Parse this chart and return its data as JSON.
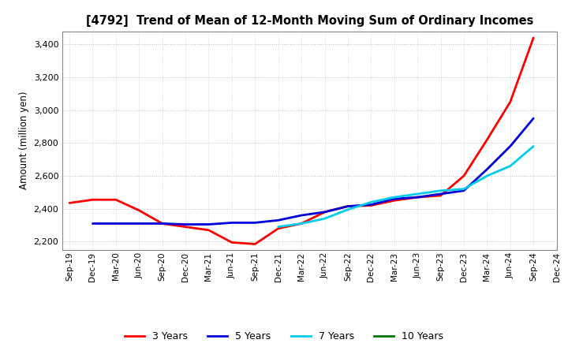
{
  "title": "[4792]  Trend of Mean of 12-Month Moving Sum of Ordinary Incomes",
  "ylabel": "Amount (million yen)",
  "ylim": [
    2150,
    3480
  ],
  "yticks": [
    2200,
    2400,
    2600,
    2800,
    3000,
    3200,
    3400
  ],
  "background_color": "#FFFFFF",
  "grid_color": "#BBBBBB",
  "x_labels": [
    "Sep-19",
    "Dec-19",
    "Mar-20",
    "Jun-20",
    "Sep-20",
    "Dec-20",
    "Mar-21",
    "Jun-21",
    "Sep-21",
    "Dec-21",
    "Mar-22",
    "Jun-22",
    "Sep-22",
    "Dec-22",
    "Mar-23",
    "Jun-23",
    "Sep-23",
    "Dec-23",
    "Mar-24",
    "Jun-24",
    "Sep-24",
    "Dec-24"
  ],
  "series": {
    "3 Years": {
      "color": "#FF0000",
      "linewidth": 2.0,
      "data_x": [
        0,
        1,
        2,
        3,
        4,
        5,
        6,
        7,
        8,
        9,
        10,
        11,
        12,
        13,
        14,
        15,
        16,
        17,
        18,
        19,
        20
      ],
      "data_y": [
        2435,
        2455,
        2455,
        2390,
        2310,
        2290,
        2270,
        2195,
        2185,
        2280,
        2310,
        2380,
        2415,
        2420,
        2450,
        2470,
        2480,
        2600,
        2820,
        3050,
        3440
      ]
    },
    "5 Years": {
      "color": "#0000DD",
      "linewidth": 2.0,
      "data_x": [
        1,
        2,
        3,
        4,
        5,
        6,
        7,
        8,
        9,
        10,
        11,
        12,
        13,
        14,
        15,
        16,
        17,
        18,
        19,
        20
      ],
      "data_y": [
        2310,
        2310,
        2310,
        2310,
        2305,
        2305,
        2315,
        2315,
        2330,
        2360,
        2380,
        2415,
        2425,
        2460,
        2470,
        2490,
        2510,
        2640,
        2780,
        2950
      ]
    },
    "7 Years": {
      "color": "#00CCEE",
      "linewidth": 2.0,
      "data_x": [
        9,
        10,
        11,
        12,
        13,
        14,
        15,
        16,
        17,
        18,
        19,
        20
      ],
      "data_y": [
        2290,
        2310,
        2340,
        2395,
        2440,
        2470,
        2490,
        2510,
        2520,
        2600,
        2660,
        2780
      ]
    },
    "10 Years": {
      "color": "#007700",
      "linewidth": 2.0,
      "data_x": [],
      "data_y": []
    }
  },
  "legend_entries": [
    "3 Years",
    "5 Years",
    "7 Years",
    "10 Years"
  ],
  "legend_colors": [
    "#FF0000",
    "#0000DD",
    "#00CCEE",
    "#007700"
  ]
}
